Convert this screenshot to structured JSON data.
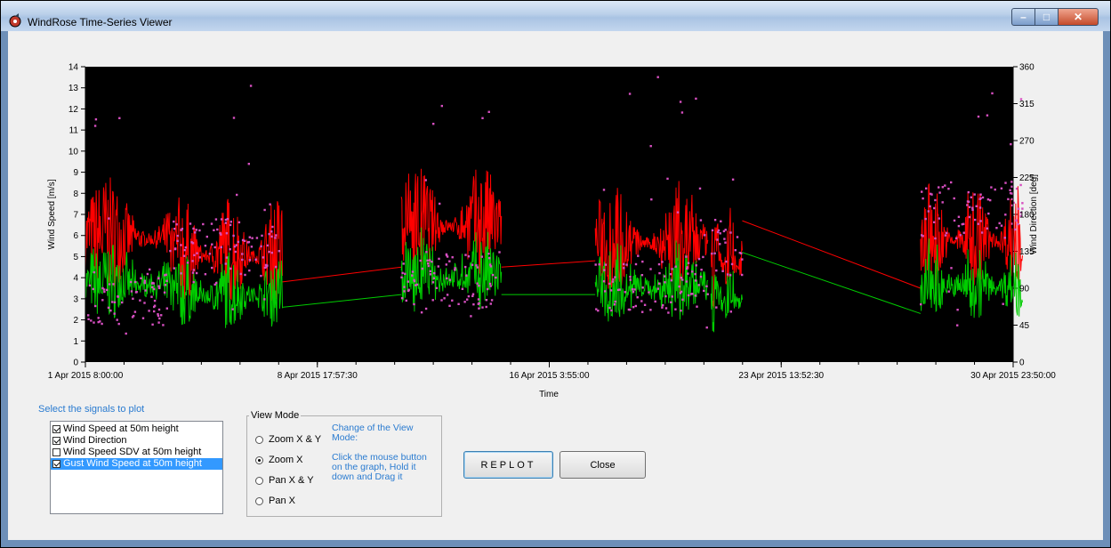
{
  "window": {
    "title": "WindRose Time-Series Viewer"
  },
  "chart_data": {
    "type": "line",
    "xlabel": "Time",
    "ylabel_left": "Wind Speed [m/s]",
    "ylabel_right": "Wind Direction [deg]",
    "x_tick_labels": [
      "1 Apr 2015 8:00:00",
      "8 Apr 2015 17:57:30",
      "16 Apr 2015 3:55:00",
      "23 Apr 2015 13:52:30",
      "30 Apr 2015 23:50:00"
    ],
    "x_range": [
      "2015-04-01 08:00:00",
      "2015-04-30 23:50:00"
    ],
    "ylim_left": [
      0,
      14
    ],
    "yticks_left": [
      "0",
      "1",
      "2",
      "3",
      "4",
      "5",
      "6",
      "7",
      "8",
      "9",
      "10",
      "11",
      "12",
      "13",
      "14"
    ],
    "ylim_right": [
      0,
      360
    ],
    "yticks_right": [
      "0",
      "45",
      "90",
      "135",
      "180",
      "225",
      "270",
      "315",
      "360"
    ],
    "background": "#000000",
    "series_colors": {
      "gust": "#ff0000",
      "speed": "#00cc00",
      "direction": "#d64fc0"
    },
    "segments": [
      {
        "start_day": 0.0,
        "end_day": 2.7,
        "gust": 5.8,
        "speed": 4.1,
        "dir_deg": 80
      },
      {
        "start_day": 2.7,
        "end_day": 6.3,
        "gust": 5.0,
        "speed": 3.5,
        "dir_deg": 140
      },
      {
        "start_day": 10.1,
        "end_day": 13.3,
        "gust": 6.4,
        "speed": 3.9,
        "dir_deg": 100
      },
      {
        "start_day": 16.3,
        "end_day": 19.9,
        "gust": 5.6,
        "speed": 3.4,
        "dir_deg": 95
      },
      {
        "start_day": 20.0,
        "end_day": 21.0,
        "gust": 4.5,
        "speed": 3.2,
        "dir_deg": 140
      },
      {
        "start_day": 26.7,
        "end_day": 29.96,
        "gust": 5.7,
        "speed": 3.6,
        "dir_deg": 185
      }
    ],
    "links": [
      {
        "from_day": 6.3,
        "to_day": 10.1,
        "gust": [
          3.8,
          4.5
        ],
        "speed": [
          2.6,
          3.2
        ]
      },
      {
        "from_day": 13.3,
        "to_day": 16.3,
        "gust": [
          4.5,
          4.8
        ],
        "speed": [
          3.2,
          3.2
        ]
      },
      {
        "from_day": 21.0,
        "to_day": 26.7,
        "gust": [
          6.7,
          3.5
        ],
        "speed": [
          5.2,
          2.3
        ]
      }
    ]
  },
  "signals": {
    "title": "Select the signals to plot",
    "items": [
      {
        "label": "Wind Speed at 50m height",
        "checked": true,
        "selected": false
      },
      {
        "label": "Wind Direction",
        "checked": true,
        "selected": false
      },
      {
        "label": "Wind Speed SDV at 50m height",
        "checked": false,
        "selected": false
      },
      {
        "label": "Gust Wind Speed at 50m height",
        "checked": true,
        "selected": true
      }
    ]
  },
  "view_mode": {
    "legend": "View Mode",
    "options": [
      {
        "label": "Zoom X & Y",
        "checked": false
      },
      {
        "label": "Zoom X",
        "checked": true
      },
      {
        "label": "Pan X & Y",
        "checked": false
      },
      {
        "label": "Pan X",
        "checked": false
      }
    ],
    "help": "Change of the View Mode:\n\nClick the mouse button on the graph, Hold it down and Drag it"
  },
  "buttons": {
    "replot": "REPLOT",
    "close": "Close"
  }
}
